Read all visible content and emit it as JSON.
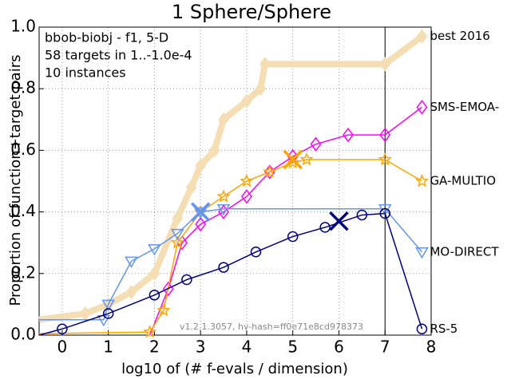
{
  "chart_data": {
    "type": "line",
    "title": "1 Sphere/Sphere",
    "annotations": [
      "bbob-biobj - f1, 5-D",
      "58 targets in 1..-1.0e-4",
      "10 instances"
    ],
    "footnote": "v1.2.1.3057, hv-hash=ff0e71e8cd978373",
    "xlabel": "log10 of (# f-evals / dimension)",
    "ylabel": "Proportion of function+target pairs",
    "xlim": [
      -0.5,
      8
    ],
    "ylim": [
      0,
      1
    ],
    "xticks": [
      0,
      1,
      2,
      3,
      4,
      5,
      6,
      7,
      8
    ],
    "yticks": [
      {
        "value": 0,
        "label": "0.0"
      },
      {
        "value": 0.2,
        "label": "0.2"
      },
      {
        "value": 0.4,
        "label": "0.4"
      },
      {
        "value": 0.6,
        "label": "0.6"
      },
      {
        "value": 0.8,
        "label": "0.8"
      },
      {
        "value": 1,
        "label": "1.0"
      }
    ],
    "grid": true,
    "vline": 7,
    "series": [
      {
        "name": "best 2016",
        "color": "#f5deb3",
        "marker": "diamond",
        "width": 8,
        "x": [
          -0.5,
          0.5,
          1,
          1.5,
          2,
          2.5,
          2.8,
          3,
          3.3,
          3.5,
          4,
          4.3,
          4.4,
          7,
          7.8
        ],
        "values": [
          0.05,
          0.07,
          0.1,
          0.14,
          0.2,
          0.38,
          0.48,
          0.55,
          0.6,
          0.7,
          0.76,
          0.8,
          0.88,
          0.88,
          0.97
        ]
      },
      {
        "name": "SMS-EMOA-",
        "color": "#ff00ff",
        "marker": "diamond",
        "width": 1.5,
        "x": [
          1.9,
          2.3,
          2.6,
          3,
          3.5,
          4,
          4.5,
          5,
          5.5,
          6.2,
          7,
          7.8
        ],
        "values": [
          0,
          0.15,
          0.3,
          0.36,
          0.4,
          0.45,
          0.53,
          0.58,
          0.62,
          0.65,
          0.65,
          0.74
        ]
      },
      {
        "name": "GA-MULTIO",
        "color": "#ffa500",
        "marker": "star",
        "width": 1.5,
        "x": [
          -0.5,
          1.9,
          2.2,
          2.5,
          3,
          3.5,
          4,
          4.5,
          5,
          5.3,
          7,
          7.8
        ],
        "values": [
          0.005,
          0.01,
          0.08,
          0.3,
          0.4,
          0.45,
          0.5,
          0.53,
          0.56,
          0.57,
          0.57,
          0.5
        ],
        "cross": {
          "x": 5,
          "y": 0.57
        }
      },
      {
        "name": "MO-DIRECT",
        "color": "#6495ed",
        "marker": "triangle",
        "width": 1.5,
        "x": [
          -0.5,
          0.9,
          1,
          1.5,
          2,
          2.5,
          3,
          3.5,
          7,
          7.8
        ],
        "values": [
          0.05,
          0.05,
          0.1,
          0.24,
          0.28,
          0.33,
          0.4,
          0.41,
          0.41,
          0.27
        ],
        "cross": {
          "x": 3,
          "y": 0.4
        }
      },
      {
        "name": "RS-5",
        "color": "#000080",
        "marker": "circle",
        "width": 1.5,
        "x": [
          -0.5,
          0,
          1,
          2,
          2.7,
          3.5,
          4.2,
          5,
          5.7,
          6.5,
          7,
          7.8
        ],
        "values": [
          0,
          0.02,
          0.07,
          0.13,
          0.18,
          0.22,
          0.27,
          0.32,
          0.35,
          0.39,
          0.395,
          0.02
        ],
        "cross": {
          "x": 6,
          "y": 0.37
        }
      }
    ]
  }
}
